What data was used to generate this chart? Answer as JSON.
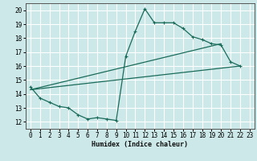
{
  "title": "",
  "xlabel": "Humidex (Indice chaleur)",
  "xlim": [
    -0.5,
    23.5
  ],
  "ylim": [
    11.5,
    20.5
  ],
  "yticks": [
    12,
    13,
    14,
    15,
    16,
    17,
    18,
    19,
    20
  ],
  "xticks": [
    0,
    1,
    2,
    3,
    4,
    5,
    6,
    7,
    8,
    9,
    10,
    11,
    12,
    13,
    14,
    15,
    16,
    17,
    18,
    19,
    20,
    21,
    22,
    23
  ],
  "background_color": "#cce8e8",
  "grid_color": "#ffffff",
  "line_color": "#1a6b5a",
  "line1_x": [
    0,
    1,
    2,
    3,
    4,
    5,
    6,
    7,
    8,
    9,
    10,
    11,
    12,
    13,
    14,
    15,
    16,
    17,
    18,
    19,
    20,
    21,
    22
  ],
  "line1_y": [
    14.5,
    13.7,
    13.4,
    13.1,
    13.0,
    12.5,
    12.2,
    12.3,
    12.2,
    12.1,
    16.7,
    18.5,
    20.1,
    19.1,
    19.1,
    19.1,
    18.7,
    18.1,
    17.9,
    17.6,
    17.5,
    16.3,
    16.0
  ],
  "line2_x": [
    0,
    22
  ],
  "line2_y": [
    14.3,
    16.0
  ],
  "line3_x": [
    0,
    20
  ],
  "line3_y": [
    14.3,
    17.6
  ]
}
